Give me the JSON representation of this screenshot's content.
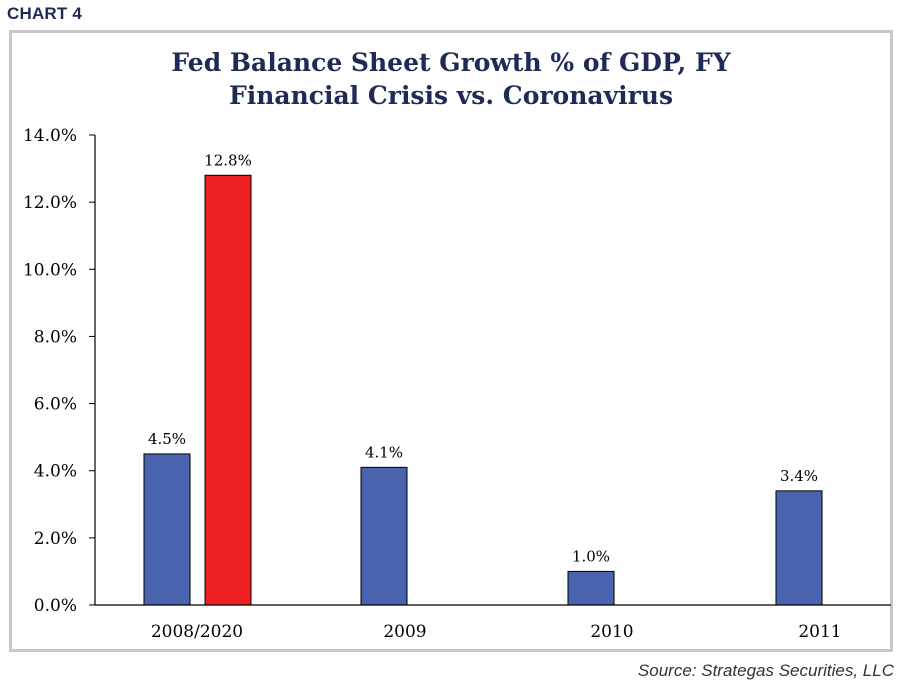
{
  "header": {
    "chart_label": "CHART 4"
  },
  "source": "Source: Strategas Securities, LLC",
  "colors": {
    "financial_crisis": "#4a63ae",
    "coronavirus": "#ee2024",
    "title": "#1f2a56",
    "frame": "#c8c8c8"
  },
  "chart_data": {
    "type": "bar",
    "title_lines": [
      "Fed Balance Sheet Growth % of GDP, FY",
      "Financial Crisis vs. Coronavirus"
    ],
    "categories": [
      "2008/2020",
      "2009",
      "2010",
      "2011"
    ],
    "series": [
      {
        "color": "#4a63ae",
        "values": [
          4.5,
          4.1,
          1.0,
          3.4
        ],
        "labels": [
          "4.5%",
          "4.1%",
          "1.0%",
          "3.4%"
        ]
      },
      {
        "color": "#ee2024",
        "values": [
          12.8,
          null,
          null,
          null
        ],
        "labels": [
          "12.8%",
          null,
          null,
          null
        ]
      }
    ],
    "yticks": [
      0,
      2,
      4,
      6,
      8,
      10,
      12,
      14
    ],
    "ytick_labels": [
      "0.0%",
      "2.0%",
      "4.0%",
      "6.0%",
      "8.0%",
      "10.0%",
      "12.0%",
      "14.0%"
    ],
    "ylim": [
      0,
      14
    ],
    "grid": false,
    "legend": "none"
  }
}
